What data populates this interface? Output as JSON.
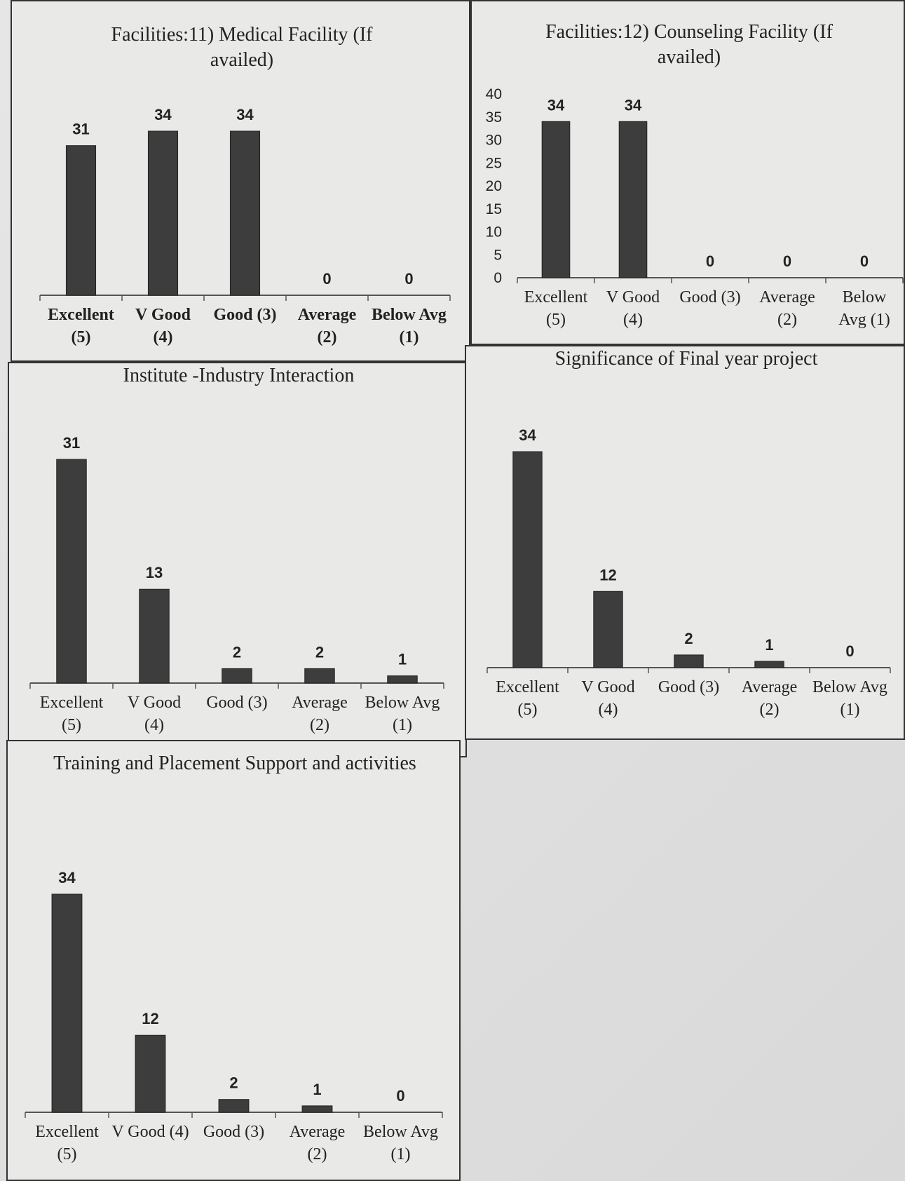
{
  "chart_data": [
    {
      "type": "bar",
      "title": "Facilities:11) Medical Facility (If availed)",
      "categories": [
        "Excellent (5)",
        "V Good (4)",
        "Good (3)",
        "Average (2)",
        "Below Avg (1)"
      ],
      "values": [
        31,
        34,
        34,
        0,
        0
      ],
      "color": "#3d3d3d"
    },
    {
      "type": "bar",
      "title": "Facilities:12) Counseling Facility (If availed)",
      "categories": [
        "Excellent (5)",
        "V Good (4)",
        "Good (3)",
        "Average (2)",
        "Below Avg (1)"
      ],
      "values": [
        34,
        34,
        0,
        0,
        0
      ],
      "color": "#3d3d3d",
      "ylim": [
        0,
        40
      ],
      "yticks": [
        0,
        5,
        10,
        15,
        20,
        25,
        30,
        35,
        40
      ]
    },
    {
      "type": "bar",
      "title": "Institute -Industry Interaction",
      "categories": [
        "Excellent (5)",
        "V Good (4)",
        "Good (3)",
        "Average (2)",
        "Below Avg (1)"
      ],
      "values": [
        31,
        13,
        2,
        2,
        1
      ],
      "color": "#3d3d3d"
    },
    {
      "type": "bar",
      "title": "Significance of Final year project",
      "categories": [
        "Excellent (5)",
        "V Good (4)",
        "Good (3)",
        "Average (2)",
        "Below Avg (1)"
      ],
      "values": [
        34,
        12,
        2,
        1,
        0
      ],
      "color": "#3d3d3d"
    },
    {
      "type": "bar",
      "title": "Training and Placement Support and activities",
      "categories": [
        "Excellent (5)",
        "V Good (4)",
        "Good (3)",
        "Average (2)",
        "Below Avg (1)"
      ],
      "values": [
        34,
        12,
        2,
        1,
        0
      ],
      "color": "#3d3d3d"
    }
  ]
}
